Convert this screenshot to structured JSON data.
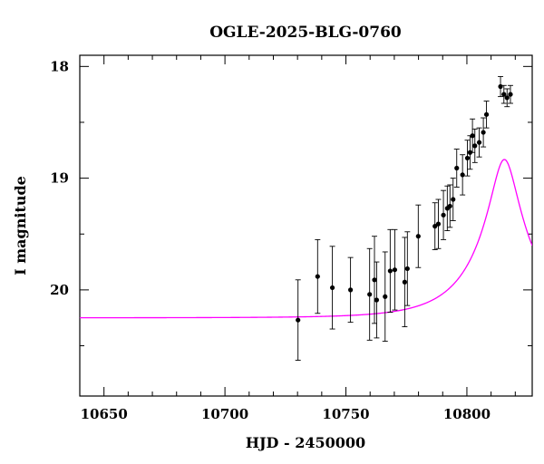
{
  "chart_data": {
    "type": "scatter",
    "title": "OGLE-2025-BLG-0760",
    "xlabel": "HJD - 2450000",
    "ylabel": "I magnitude",
    "xlim": [
      10640,
      10827
    ],
    "ylim": [
      20.95,
      17.9
    ],
    "y_inverted": true,
    "xticks": [
      10650,
      10700,
      10750,
      10800
    ],
    "yticks": [
      18,
      19,
      20
    ],
    "grid": false,
    "series": [
      {
        "kind": "points_with_errorbars",
        "color": "#000000",
        "points": [
          {
            "x": 10730.2,
            "y": 20.27,
            "err": 0.36
          },
          {
            "x": 10738.3,
            "y": 19.88,
            "err": 0.33
          },
          {
            "x": 10744.4,
            "y": 19.98,
            "err": 0.37
          },
          {
            "x": 10751.9,
            "y": 20.0,
            "err": 0.29
          },
          {
            "x": 10759.8,
            "y": 20.04,
            "err": 0.41
          },
          {
            "x": 10761.8,
            "y": 19.91,
            "err": 0.39
          },
          {
            "x": 10762.7,
            "y": 20.09,
            "err": 0.34
          },
          {
            "x": 10766.2,
            "y": 20.06,
            "err": 0.4
          },
          {
            "x": 10768.3,
            "y": 19.83,
            "err": 0.37
          },
          {
            "x": 10770.2,
            "y": 19.82,
            "err": 0.36
          },
          {
            "x": 10774.3,
            "y": 19.93,
            "err": 0.4
          },
          {
            "x": 10775.4,
            "y": 19.81,
            "err": 0.33
          },
          {
            "x": 10779.9,
            "y": 19.52,
            "err": 0.28
          },
          {
            "x": 10786.8,
            "y": 19.43,
            "err": 0.21
          },
          {
            "x": 10788.2,
            "y": 19.41,
            "err": 0.22
          },
          {
            "x": 10790.3,
            "y": 19.33,
            "err": 0.22
          },
          {
            "x": 10791.9,
            "y": 19.27,
            "err": 0.2
          },
          {
            "x": 10793.0,
            "y": 19.25,
            "err": 0.19
          },
          {
            "x": 10794.3,
            "y": 19.19,
            "err": 0.19
          },
          {
            "x": 10795.8,
            "y": 18.91,
            "err": 0.17
          },
          {
            "x": 10798.2,
            "y": 18.97,
            "err": 0.18
          },
          {
            "x": 10800.2,
            "y": 18.82,
            "err": 0.16
          },
          {
            "x": 10801.3,
            "y": 18.77,
            "err": 0.15
          },
          {
            "x": 10802.3,
            "y": 18.62,
            "err": 0.15
          },
          {
            "x": 10803.3,
            "y": 18.71,
            "err": 0.15
          },
          {
            "x": 10805.1,
            "y": 18.68,
            "err": 0.13
          },
          {
            "x": 10806.8,
            "y": 18.59,
            "err": 0.13
          },
          {
            "x": 10808.1,
            "y": 18.43,
            "err": 0.12
          },
          {
            "x": 10813.9,
            "y": 18.18,
            "err": 0.09
          },
          {
            "x": 10815.3,
            "y": 18.25,
            "err": 0.08
          },
          {
            "x": 10816.6,
            "y": 18.28,
            "err": 0.08
          },
          {
            "x": 10818.0,
            "y": 18.25,
            "err": 0.08
          }
        ]
      },
      {
        "kind": "model_curve",
        "color": "#ff00ff",
        "model": {
          "type": "paczynski",
          "t0": 10815.5,
          "tE": 25,
          "u0": 0.21,
          "baseline_mag": 20.25,
          "blend_fraction": 0.3
        }
      }
    ]
  }
}
